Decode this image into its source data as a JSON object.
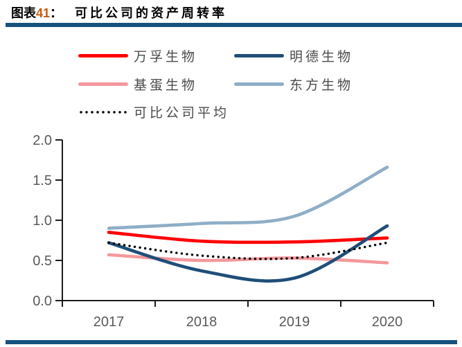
{
  "header": {
    "prefix": "图表",
    "number": "41",
    "colon": "：",
    "title": "可比公司的资产周转率",
    "number_color": "#C55A11",
    "text_color": "#000000"
  },
  "divider_bar_color": "#17527F",
  "chart_data": {
    "type": "line",
    "title": "可比公司的资产周转率",
    "categories": [
      "2017",
      "2018",
      "2019",
      "2020"
    ],
    "y_ticks": [
      "0.0",
      "0.5",
      "1.0",
      "1.5",
      "2.0"
    ],
    "ylim": [
      0,
      2.0
    ],
    "grid": false,
    "legend_position": "top",
    "line_smoothing": true,
    "axis_color": "#1a1a1a",
    "tick_label_color": "#595959",
    "series": [
      {
        "name": "万孚生物",
        "color": "#ff0000",
        "style": "solid",
        "values": [
          0.85,
          0.74,
          0.73,
          0.78
        ]
      },
      {
        "name": "明德生物",
        "color": "#1f4e79",
        "style": "solid",
        "values": [
          0.72,
          0.37,
          0.28,
          0.93
        ]
      },
      {
        "name": "基蛋生物",
        "color": "#f4989c",
        "style": "solid",
        "values": [
          0.57,
          0.5,
          0.53,
          0.47
        ]
      },
      {
        "name": "东方生物",
        "color": "#8faec7",
        "style": "solid",
        "values": [
          0.9,
          0.96,
          1.05,
          1.66
        ]
      },
      {
        "name": "可比公司平均",
        "color": "#000000",
        "style": "dotted",
        "values": [
          0.72,
          0.56,
          0.53,
          0.72
        ]
      }
    ]
  }
}
